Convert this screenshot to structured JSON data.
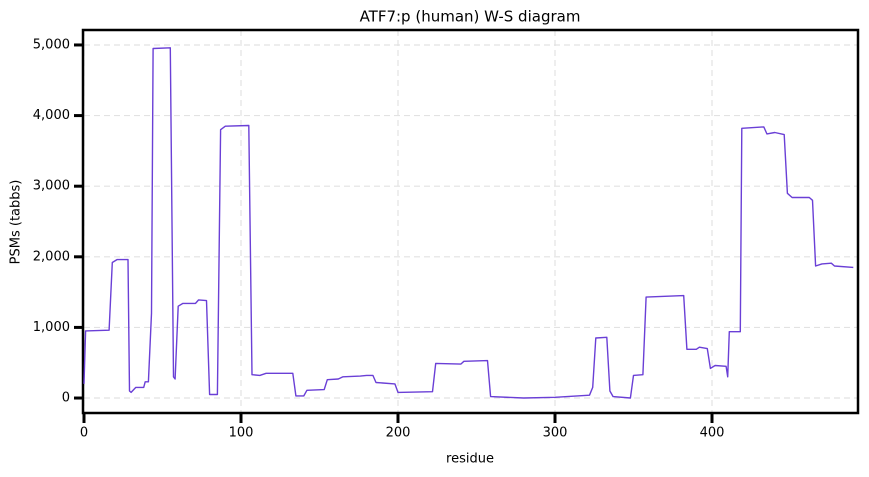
{
  "chart_data": {
    "type": "line",
    "title": "ATF7:p (human) W-S diagram",
    "x_label": "residue",
    "y_label": "PSMs (tabbs)",
    "x": [
      0,
      1,
      16,
      18,
      21,
      28,
      29,
      30,
      33,
      38,
      39,
      41,
      43,
      44,
      55,
      57,
      58,
      60,
      63,
      71,
      73,
      78,
      80,
      85,
      87,
      90,
      105,
      107,
      112,
      116,
      133,
      135,
      140,
      142,
      153,
      155,
      162,
      165,
      176,
      180,
      184,
      186,
      198,
      200,
      222,
      224,
      240,
      242,
      257,
      259,
      280,
      300,
      322,
      324,
      326,
      333,
      335,
      337,
      348,
      350,
      356,
      358,
      382,
      384,
      390,
      392,
      397,
      399,
      402,
      409,
      410,
      411,
      418,
      419,
      433,
      435,
      440,
      446,
      448,
      451,
      462,
      464,
      466,
      470,
      476,
      478,
      490
    ],
    "values": [
      200,
      950,
      960,
      1920,
      1960,
      1960,
      100,
      80,
      150,
      150,
      230,
      230,
      1200,
      4950,
      4960,
      300,
      270,
      1300,
      1340,
      1340,
      1390,
      1380,
      50,
      50,
      3800,
      3850,
      3860,
      330,
      320,
      350,
      350,
      30,
      30,
      110,
      120,
      260,
      270,
      300,
      310,
      320,
      320,
      220,
      200,
      80,
      90,
      490,
      480,
      520,
      530,
      20,
      0,
      10,
      40,
      150,
      850,
      860,
      100,
      20,
      0,
      320,
      330,
      1430,
      1450,
      690,
      690,
      720,
      700,
      420,
      460,
      450,
      300,
      940,
      940,
      3820,
      3840,
      3740,
      3760,
      3730,
      2900,
      2840,
      2840,
      2800,
      1870,
      1900,
      1910,
      1870,
      1850
    ],
    "color": "#6a3fd6",
    "xlim": [
      0,
      493
    ],
    "ylim": [
      -212,
      5212
    ],
    "xticks": [
      0,
      100,
      200,
      300,
      400
    ],
    "yticks": [
      0,
      {
        "value": 1000,
        "label": "1,000"
      },
      {
        "value": 2000,
        "label": "2,000"
      },
      {
        "value": 3000,
        "label": "3,000"
      },
      {
        "value": 4000,
        "label": "4,000"
      },
      {
        "value": 5000,
        "label": "5,000"
      }
    ],
    "grid": true
  }
}
